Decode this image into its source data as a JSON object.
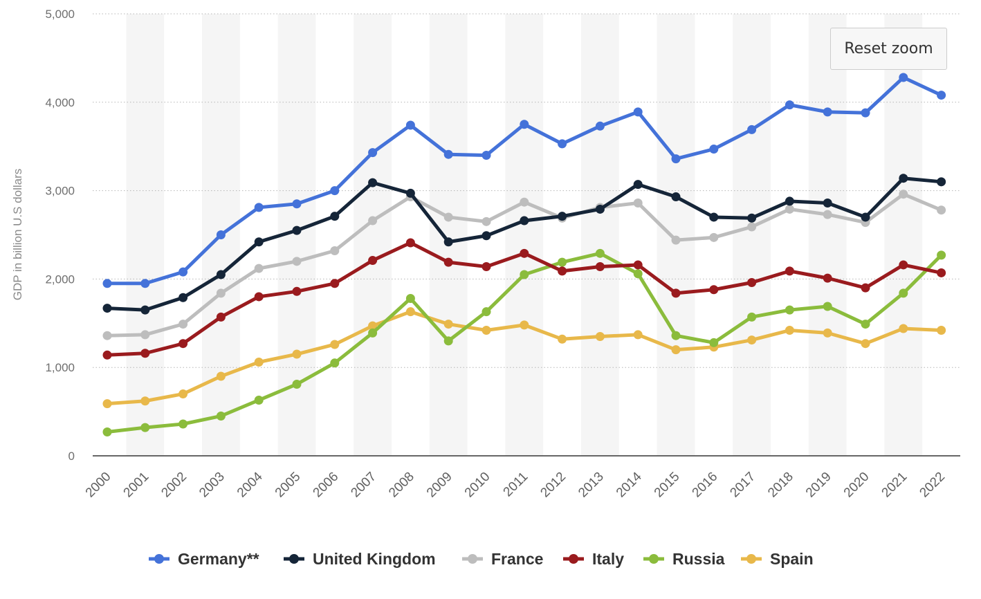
{
  "reset_zoom_label": "Reset zoom",
  "chart_data": {
    "type": "line",
    "title": "",
    "xlabel": "",
    "ylabel": "GDP in billion U.S dollars",
    "ylim": [
      0,
      5000
    ],
    "yticks": [
      0,
      1000,
      2000,
      3000,
      4000,
      5000
    ],
    "ytick_labels": [
      "0",
      "1,000",
      "2,000",
      "3,000",
      "4,000",
      "5,000"
    ],
    "categories": [
      "2000",
      "2001",
      "2002",
      "2003",
      "2004",
      "2005",
      "2006",
      "2007",
      "2008",
      "2009",
      "2010",
      "2011",
      "2012",
      "2013",
      "2014",
      "2015",
      "2016",
      "2017",
      "2018",
      "2019",
      "2020",
      "2021",
      "2022"
    ],
    "grid": true,
    "legend_position": "bottom",
    "series": [
      {
        "name": "Germany**",
        "color": "#4472d9",
        "values": [
          1950,
          1950,
          2080,
          2500,
          2810,
          2850,
          3000,
          3430,
          3740,
          3410,
          3400,
          3750,
          3530,
          3730,
          3890,
          3360,
          3470,
          3690,
          3970,
          3890,
          3880,
          4280,
          4080
        ]
      },
      {
        "name": "United Kingdom",
        "color": "#152538",
        "values": [
          1670,
          1650,
          1790,
          2050,
          2420,
          2550,
          2710,
          3090,
          2970,
          2420,
          2490,
          2660,
          2710,
          2790,
          3070,
          2930,
          2700,
          2690,
          2880,
          2860,
          2700,
          3140,
          3100
        ]
      },
      {
        "name": "France",
        "color": "#bdbdbd",
        "values": [
          1360,
          1370,
          1490,
          1840,
          2120,
          2200,
          2320,
          2660,
          2930,
          2700,
          2650,
          2870,
          2690,
          2810,
          2860,
          2440,
          2470,
          2590,
          2790,
          2730,
          2640,
          2960,
          2780
        ]
      },
      {
        "name": "Italy",
        "color": "#9a1b1e",
        "values": [
          1140,
          1160,
          1270,
          1570,
          1800,
          1860,
          1950,
          2210,
          2410,
          2190,
          2140,
          2290,
          2090,
          2140,
          2160,
          1840,
          1880,
          1960,
          2090,
          2010,
          1900,
          2160,
          2070
        ]
      },
      {
        "name": "Russia",
        "color": "#8bbc3c",
        "values": [
          270,
          320,
          360,
          450,
          630,
          810,
          1050,
          1390,
          1780,
          1300,
          1630,
          2050,
          2190,
          2290,
          2060,
          1360,
          1280,
          1570,
          1650,
          1690,
          1490,
          1840,
          2270
        ]
      },
      {
        "name": "Spain",
        "color": "#e8b84a",
        "values": [
          590,
          620,
          700,
          900,
          1060,
          1150,
          1260,
          1470,
          1630,
          1490,
          1420,
          1480,
          1320,
          1350,
          1370,
          1200,
          1230,
          1310,
          1420,
          1390,
          1270,
          1440,
          1420
        ]
      }
    ]
  }
}
